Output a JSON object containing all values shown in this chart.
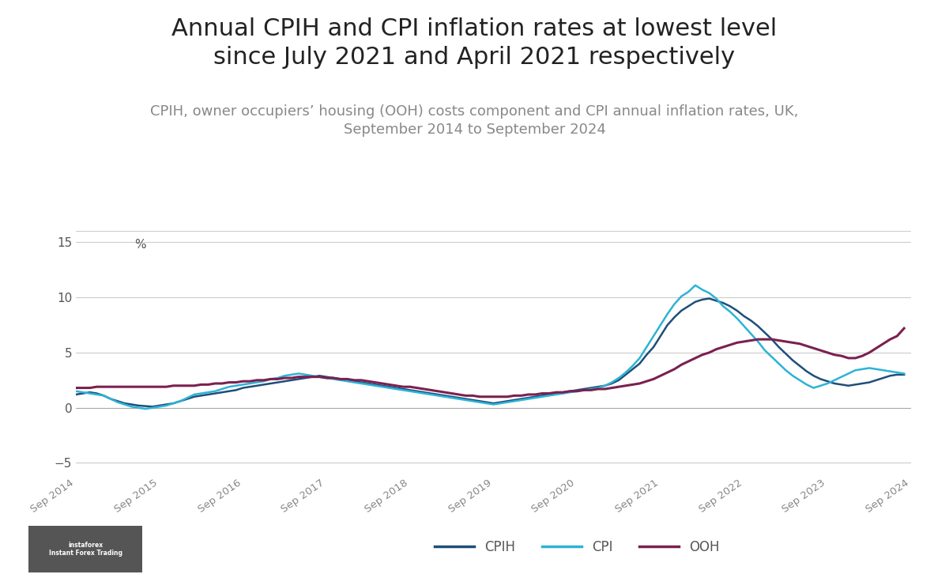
{
  "title": "Annual CPIH and CPI inflation rates at lowest level\nsince July 2021 and April 2021 respectively",
  "subtitle": "CPIH, owner occupiers’ housing (OOH) costs component and CPI annual inflation rates, UK,\nSeptember 2014 to September 2024",
  "title_fontsize": 22,
  "subtitle_fontsize": 13,
  "background_color": "#ffffff",
  "cpih_color": "#1f4e79",
  "cpi_color": "#2db3d5",
  "ooh_color": "#7b2050",
  "ylim": [
    -6,
    16
  ],
  "yticks": [
    -5,
    0,
    5,
    10,
    15
  ],
  "ylabel_pct": "%",
  "xtick_labels": [
    "Sep 2014",
    "Sep 2015",
    "Sep 2016",
    "Sep 2017",
    "Sep 2018",
    "Sep 2019",
    "Sep 2020",
    "Sep 2021",
    "Sep 2022",
    "Sep 2023",
    "Sep 2024"
  ],
  "legend_labels": [
    "CPIH",
    "CPI",
    "OOH"
  ],
  "watermark": "instaforex",
  "cpih_data": [
    1.2,
    1.3,
    1.4,
    1.3,
    1.1,
    0.8,
    0.6,
    0.4,
    0.3,
    0.2,
    0.15,
    0.1,
    0.2,
    0.3,
    0.4,
    0.6,
    0.8,
    1.0,
    1.1,
    1.2,
    1.3,
    1.4,
    1.5,
    1.6,
    1.8,
    1.9,
    2.0,
    2.1,
    2.2,
    2.3,
    2.4,
    2.5,
    2.6,
    2.7,
    2.8,
    2.9,
    2.8,
    2.7,
    2.6,
    2.5,
    2.4,
    2.3,
    2.2,
    2.1,
    2.0,
    1.9,
    1.8,
    1.7,
    1.6,
    1.5,
    1.4,
    1.3,
    1.2,
    1.1,
    1.0,
    0.9,
    0.8,
    0.7,
    0.6,
    0.5,
    0.4,
    0.5,
    0.6,
    0.7,
    0.8,
    0.9,
    1.0,
    1.1,
    1.2,
    1.3,
    1.4,
    1.5,
    1.6,
    1.7,
    1.8,
    1.9,
    2.0,
    2.2,
    2.5,
    3.0,
    3.5,
    4.0,
    4.8,
    5.5,
    6.5,
    7.5,
    8.2,
    8.8,
    9.2,
    9.6,
    9.8,
    9.9,
    9.7,
    9.5,
    9.2,
    8.8,
    8.3,
    7.9,
    7.4,
    6.8,
    6.2,
    5.5,
    4.9,
    4.3,
    3.8,
    3.3,
    2.9,
    2.6,
    2.4,
    2.2,
    2.1,
    2.0,
    2.1,
    2.2,
    2.3,
    2.5,
    2.7,
    2.9,
    3.0,
    3.0
  ],
  "cpi_data": [
    1.5,
    1.4,
    1.3,
    1.2,
    1.1,
    0.8,
    0.5,
    0.3,
    0.1,
    0.0,
    -0.1,
    0.0,
    0.1,
    0.2,
    0.4,
    0.6,
    0.9,
    1.2,
    1.3,
    1.4,
    1.5,
    1.7,
    1.9,
    2.0,
    2.1,
    2.2,
    2.3,
    2.4,
    2.6,
    2.7,
    2.9,
    3.0,
    3.1,
    3.0,
    2.9,
    2.8,
    2.7,
    2.6,
    2.5,
    2.4,
    2.3,
    2.2,
    2.1,
    2.0,
    1.9,
    1.8,
    1.7,
    1.6,
    1.5,
    1.4,
    1.3,
    1.2,
    1.1,
    1.0,
    0.9,
    0.8,
    0.7,
    0.6,
    0.5,
    0.4,
    0.3,
    0.4,
    0.5,
    0.6,
    0.7,
    0.8,
    0.9,
    1.0,
    1.1,
    1.2,
    1.3,
    1.4,
    1.5,
    1.6,
    1.7,
    1.8,
    2.0,
    2.3,
    2.7,
    3.2,
    3.8,
    4.5,
    5.5,
    6.5,
    7.5,
    8.5,
    9.4,
    10.1,
    10.5,
    11.1,
    10.7,
    10.4,
    9.9,
    9.2,
    8.7,
    8.1,
    7.4,
    6.7,
    6.0,
    5.2,
    4.6,
    4.0,
    3.4,
    2.9,
    2.5,
    2.1,
    1.8,
    2.0,
    2.2,
    2.5,
    2.8,
    3.1,
    3.4,
    3.5,
    3.6,
    3.5,
    3.4,
    3.3,
    3.2,
    3.1
  ],
  "ooh_data": [
    1.8,
    1.8,
    1.8,
    1.9,
    1.9,
    1.9,
    1.9,
    1.9,
    1.9,
    1.9,
    1.9,
    1.9,
    1.9,
    1.9,
    2.0,
    2.0,
    2.0,
    2.0,
    2.1,
    2.1,
    2.2,
    2.2,
    2.3,
    2.3,
    2.4,
    2.4,
    2.5,
    2.5,
    2.6,
    2.6,
    2.7,
    2.7,
    2.8,
    2.8,
    2.8,
    2.8,
    2.7,
    2.7,
    2.6,
    2.6,
    2.5,
    2.5,
    2.4,
    2.3,
    2.2,
    2.1,
    2.0,
    1.9,
    1.9,
    1.8,
    1.7,
    1.6,
    1.5,
    1.4,
    1.3,
    1.2,
    1.1,
    1.1,
    1.0,
    1.0,
    1.0,
    1.0,
    1.0,
    1.1,
    1.1,
    1.2,
    1.2,
    1.3,
    1.3,
    1.4,
    1.4,
    1.5,
    1.5,
    1.6,
    1.6,
    1.7,
    1.7,
    1.8,
    1.9,
    2.0,
    2.1,
    2.2,
    2.4,
    2.6,
    2.9,
    3.2,
    3.5,
    3.9,
    4.2,
    4.5,
    4.8,
    5.0,
    5.3,
    5.5,
    5.7,
    5.9,
    6.0,
    6.1,
    6.2,
    6.2,
    6.2,
    6.1,
    6.0,
    5.9,
    5.8,
    5.6,
    5.4,
    5.2,
    5.0,
    4.8,
    4.7,
    4.5,
    4.5,
    4.7,
    5.0,
    5.4,
    5.8,
    6.2,
    6.5,
    7.2
  ]
}
